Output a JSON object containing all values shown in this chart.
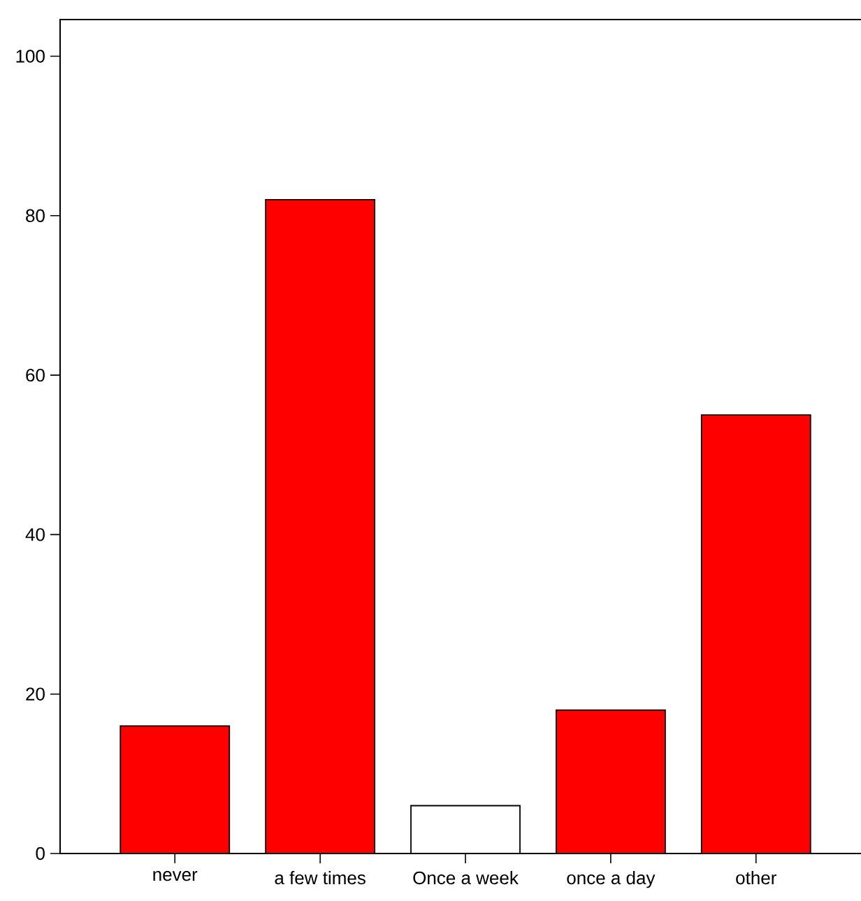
{
  "chart_data": {
    "type": "bar",
    "categories": [
      "never",
      "a few times",
      "Once a week",
      "once a day",
      "other"
    ],
    "values": [
      16,
      82,
      6,
      18,
      55
    ],
    "colors": [
      "#ff0000",
      "#ff0000",
      "#ffffff",
      "#ff0000",
      "#ff0000"
    ],
    "ylim": [
      0,
      104.6
    ],
    "yticks": [
      0,
      20,
      40,
      60,
      80,
      100
    ],
    "grid": false
  }
}
